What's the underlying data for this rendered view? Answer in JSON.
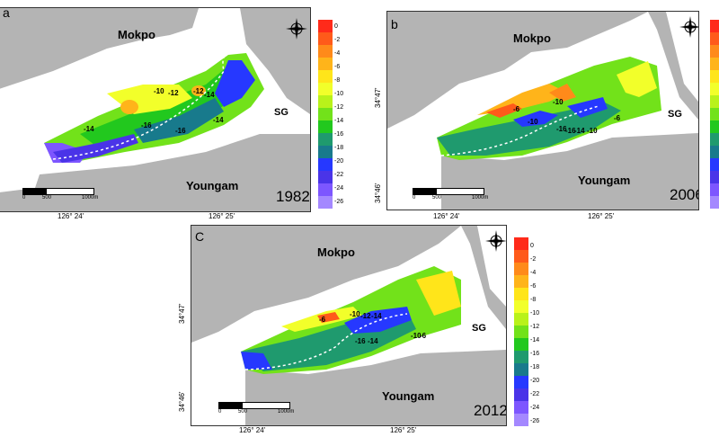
{
  "panels": {
    "a": {
      "letter": "a",
      "year": "1982"
    },
    "b": {
      "letter": "b",
      "year": "2006"
    },
    "c": {
      "letter": "C",
      "year": "2012"
    }
  },
  "places": {
    "north": "Mokpo",
    "south": "Youngam",
    "east": "SG"
  },
  "scalebar": {
    "start": "0",
    "mid": "500",
    "end": "1000m"
  },
  "longitude_ticks": [
    "126° 24'",
    "126° 25'"
  ],
  "latitude_ticks": [
    "34°47'",
    "34°46'"
  ],
  "depth_scale": {
    "values": [
      "0",
      "-2",
      "-4",
      "-6",
      "-8",
      "-10",
      "-12",
      "-14",
      "-16",
      "-18",
      "-20",
      "-22",
      "-24",
      "-26"
    ],
    "colors": [
      "#ff2a1a",
      "#ff5a1a",
      "#ff8a1a",
      "#ffb41a",
      "#ffe51a",
      "#f2ff2a",
      "#b9f21a",
      "#72e21a",
      "#22c81e",
      "#1f9a6e",
      "#187a8c",
      "#2638ff",
      "#4a34e8",
      "#7d56ff",
      "#a488ff"
    ]
  },
  "contour_labels": {
    "a": [
      "-10",
      "-12",
      "-12",
      "-14",
      "-14",
      "-16",
      "-16",
      "-14"
    ],
    "b": [
      "-6",
      "-10",
      "-10",
      "-16",
      "-16",
      "-14",
      "-10",
      "-6"
    ],
    "c": [
      "-6",
      "-10",
      "-12",
      "-14",
      "-16",
      "-14",
      "-10",
      "-6"
    ]
  },
  "compass_letters": {
    "n": "N",
    "s": "S",
    "e": "E",
    "w": "W"
  }
}
